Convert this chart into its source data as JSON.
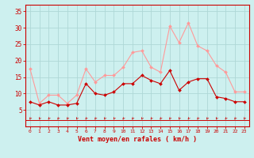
{
  "x": [
    0,
    1,
    2,
    3,
    4,
    5,
    6,
    7,
    8,
    9,
    10,
    11,
    12,
    13,
    14,
    15,
    16,
    17,
    18,
    19,
    20,
    21,
    22,
    23
  ],
  "wind_avg": [
    7.5,
    6.5,
    7.5,
    6.5,
    6.5,
    7.0,
    13.0,
    10.0,
    9.5,
    10.5,
    13.0,
    13.0,
    15.5,
    14.0,
    13.0,
    17.0,
    11.0,
    13.5,
    14.5,
    14.5,
    9.0,
    8.5,
    7.5,
    7.5
  ],
  "wind_gust": [
    17.5,
    7.0,
    9.5,
    9.5,
    7.0,
    9.5,
    17.5,
    13.5,
    15.5,
    15.5,
    18.0,
    22.5,
    23.0,
    18.0,
    16.5,
    30.5,
    25.5,
    31.5,
    24.5,
    23.0,
    18.5,
    16.5,
    10.5,
    10.5
  ],
  "ylim": [
    0,
    37
  ],
  "yticks": [
    5,
    10,
    15,
    20,
    25,
    30,
    35
  ],
  "xlabel": "Vent moyen/en rafales ( km/h )",
  "bg_color": "#cdf0ef",
  "grid_color": "#aed8d6",
  "line_avg_color": "#cc0000",
  "line_gust_color": "#ff9999",
  "axis_color": "#cc0000",
  "label_color": "#cc0000"
}
